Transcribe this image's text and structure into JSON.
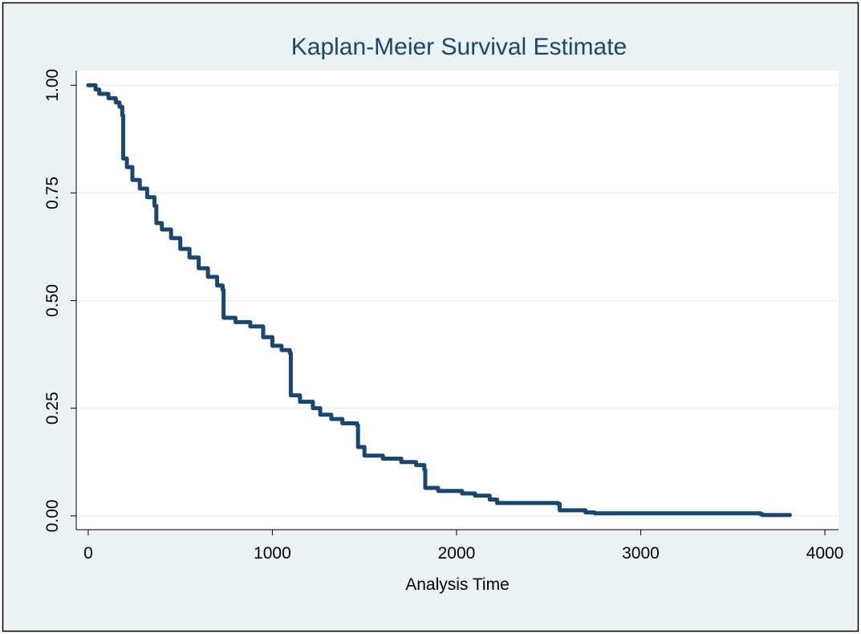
{
  "chart_data": {
    "type": "line",
    "step": "post",
    "title": "Kaplan-Meier Survival Estimate",
    "x_label": "Analysis Time",
    "color": "#1a476f",
    "grid": true,
    "x": [
      0,
      40,
      60,
      110,
      150,
      170,
      185,
      190,
      210,
      240,
      280,
      320,
      360,
      370,
      400,
      450,
      500,
      550,
      600,
      650,
      700,
      730,
      735,
      800,
      880,
      950,
      1000,
      1050,
      1095,
      1100,
      1150,
      1220,
      1260,
      1320,
      1380,
      1460,
      1465,
      1500,
      1600,
      1700,
      1780,
      1825,
      1830,
      1900,
      2030,
      2100,
      2180,
      2220,
      2550,
      2560,
      2700,
      2750,
      3650,
      3660,
      3810
    ],
    "values": [
      1.0,
      0.99,
      0.98,
      0.97,
      0.96,
      0.95,
      0.93,
      0.83,
      0.81,
      0.78,
      0.76,
      0.74,
      0.72,
      0.68,
      0.665,
      0.645,
      0.62,
      0.6,
      0.575,
      0.555,
      0.535,
      0.525,
      0.46,
      0.45,
      0.44,
      0.415,
      0.395,
      0.385,
      0.378,
      0.28,
      0.265,
      0.25,
      0.235,
      0.225,
      0.215,
      0.21,
      0.16,
      0.14,
      0.133,
      0.125,
      0.118,
      0.107,
      0.065,
      0.058,
      0.052,
      0.047,
      0.038,
      0.03,
      0.028,
      0.013,
      0.008,
      0.006,
      0.004,
      0.002,
      0.002
    ],
    "xlim": [
      -65,
      4074
    ],
    "xticks": [
      0,
      1000,
      2000,
      3000,
      4000
    ],
    "ylim": [
      -0.032,
      1.034
    ],
    "yticks": [
      {
        "value": 0,
        "label": "0.00"
      },
      {
        "value": 0.25,
        "label": "0.25"
      },
      {
        "value": 0.5,
        "label": "0.50"
      },
      {
        "value": 0.75,
        "label": "0.75"
      },
      {
        "value": 1,
        "label": "1.00"
      }
    ]
  }
}
